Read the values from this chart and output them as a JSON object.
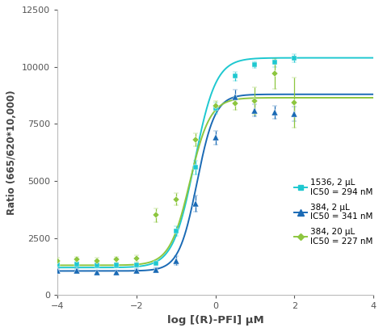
{
  "title": "",
  "xlabel": "log [(R)-PFI] μM",
  "ylabel": "Ratio (665/620*10,000)",
  "xlim": [
    -4,
    4
  ],
  "ylim": [
    0,
    12500
  ],
  "yticks": [
    0,
    2500,
    5000,
    7500,
    10000,
    12500
  ],
  "xticks": [
    -4,
    -2,
    0,
    2,
    4
  ],
  "background_color": "#ffffff",
  "series": [
    {
      "label": "1536, 2 μL\nIC50 = 294 nM",
      "color": "#1ec8d0",
      "marker": "s",
      "markersize": 4.5,
      "ic50_log": -0.531,
      "bottom": 1200,
      "top": 10400,
      "hill": 1.6,
      "x_data": [
        -4.0,
        -3.5,
        -3.0,
        -2.5,
        -2.0,
        -1.5,
        -1.0,
        -0.5,
        0.0,
        0.5,
        1.0,
        1.5,
        2.0
      ],
      "y_data": [
        1350,
        1350,
        1300,
        1300,
        1300,
        1400,
        2800,
        5600,
        8200,
        9600,
        10100,
        10200,
        10400
      ],
      "y_err": [
        120,
        100,
        100,
        100,
        80,
        100,
        200,
        300,
        250,
        200,
        150,
        200,
        180
      ]
    },
    {
      "label": "384, 2 μL\nIC50 = 341 nM",
      "color": "#1a6ab5",
      "marker": "^",
      "markersize": 5.5,
      "ic50_log": -0.467,
      "bottom": 1050,
      "top": 8800,
      "hill": 1.9,
      "x_data": [
        -4.0,
        -3.5,
        -3.0,
        -2.5,
        -2.0,
        -1.5,
        -1.0,
        -0.5,
        0.0,
        0.5,
        1.0,
        1.5,
        2.0
      ],
      "y_data": [
        1050,
        1050,
        1000,
        1000,
        1050,
        1100,
        1500,
        4000,
        6900,
        8700,
        8100,
        8000,
        7950
      ],
      "y_err": [
        80,
        80,
        80,
        80,
        80,
        100,
        200,
        350,
        300,
        300,
        250,
        280,
        320
      ]
    },
    {
      "label": "384, 20 μL\nIC50 = 227 nM",
      "color": "#8dc63f",
      "marker": "D",
      "markersize": 4.5,
      "ic50_log": -0.644,
      "bottom": 1300,
      "top": 8650,
      "hill": 1.7,
      "x_data": [
        -4.0,
        -3.5,
        -3.0,
        -2.5,
        -2.0,
        -1.5,
        -1.0,
        -0.5,
        0.0,
        0.5,
        1.0,
        1.5,
        2.0
      ],
      "y_data": [
        1500,
        1550,
        1500,
        1550,
        1600,
        3500,
        4200,
        6800,
        8300,
        8400,
        8500,
        9700,
        8450
      ],
      "y_err": [
        130,
        120,
        120,
        130,
        150,
        300,
        280,
        280,
        220,
        280,
        600,
        650,
        1100
      ]
    }
  ]
}
